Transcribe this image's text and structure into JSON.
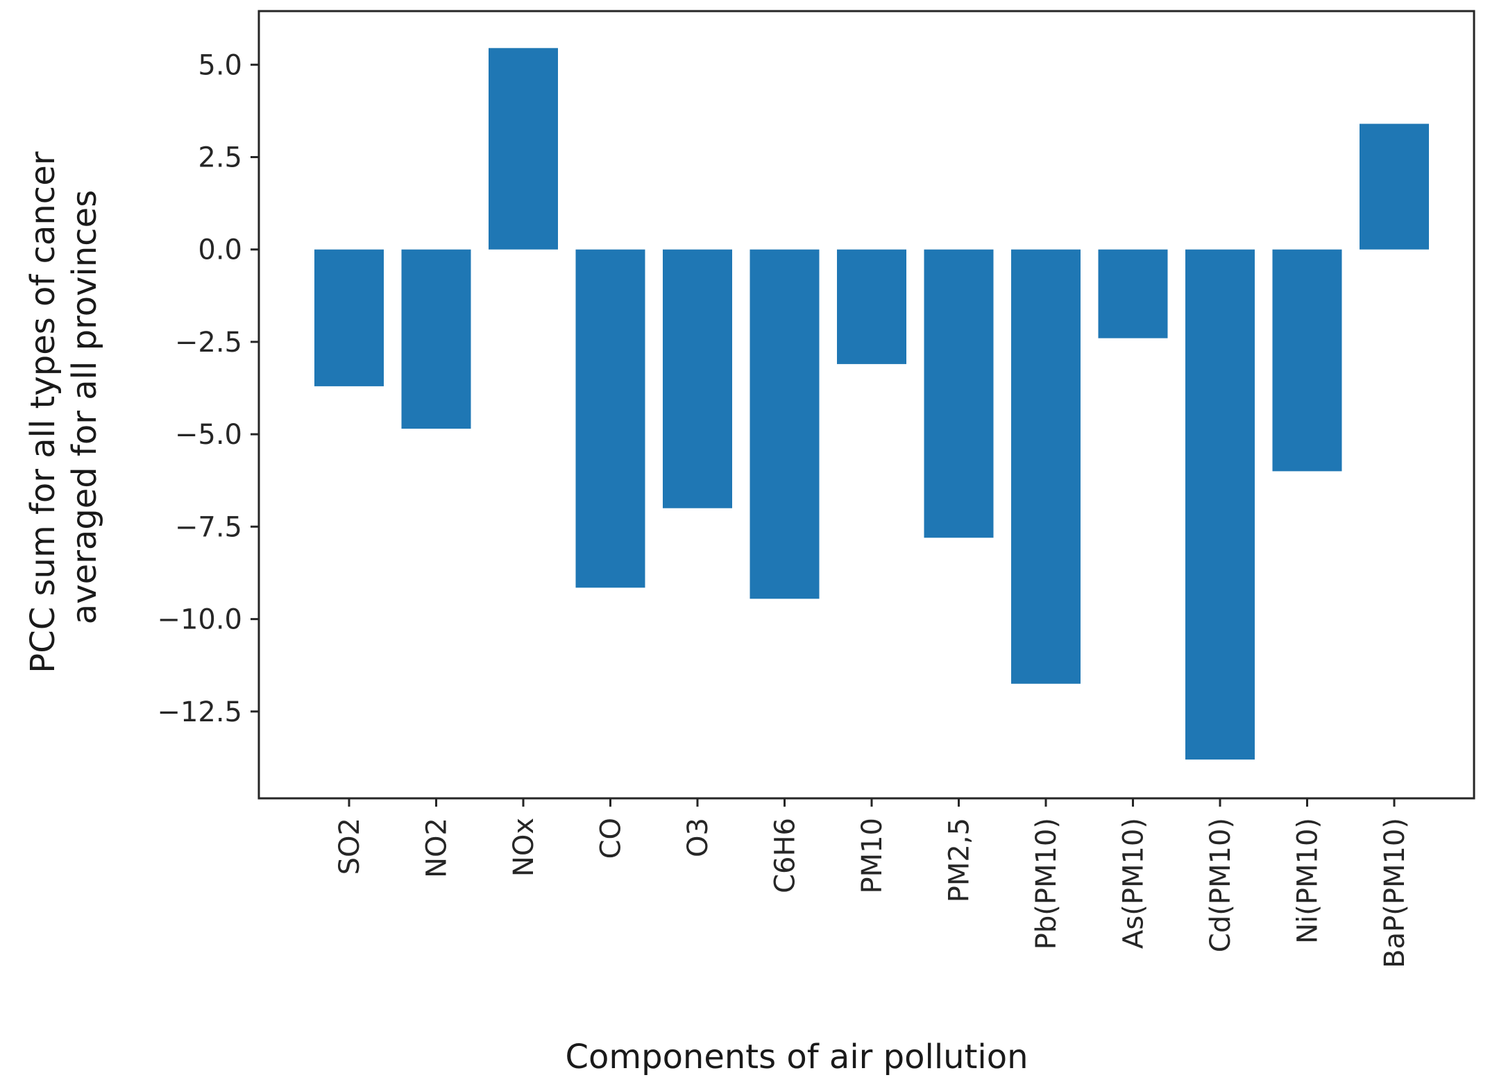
{
  "chart_data": {
    "type": "bar",
    "title": "",
    "xlabel": "Components of air pollution",
    "ylabel_lines": [
      "PCC sum for all types of cancer",
      "averaged for all provinces"
    ],
    "categories": [
      "SO2",
      "NO2",
      "NOx",
      "CO",
      "O3",
      "C6H6",
      "PM10",
      "PM2,5",
      "Pb(PM10)",
      "As(PM10)",
      "Cd(PM10)",
      "Ni(PM10)",
      "BaP(PM10)"
    ],
    "values": [
      -3.7,
      -4.85,
      5.45,
      -9.15,
      -7.0,
      -9.45,
      -3.1,
      -7.8,
      -11.75,
      -2.4,
      -13.8,
      -6.0,
      3.4
    ],
    "yticks": [
      5.0,
      2.5,
      0.0,
      -2.5,
      -5.0,
      -7.5,
      -10.0,
      -12.5
    ],
    "ytick_labels": [
      "5.0",
      "2.5",
      "0.0",
      "−2.5",
      "−5.0",
      "−7.5",
      "−10.0",
      "−12.5"
    ],
    "ylim": [
      -14.85,
      6.45
    ],
    "grid": false,
    "bar_color": "#1f77b4"
  }
}
